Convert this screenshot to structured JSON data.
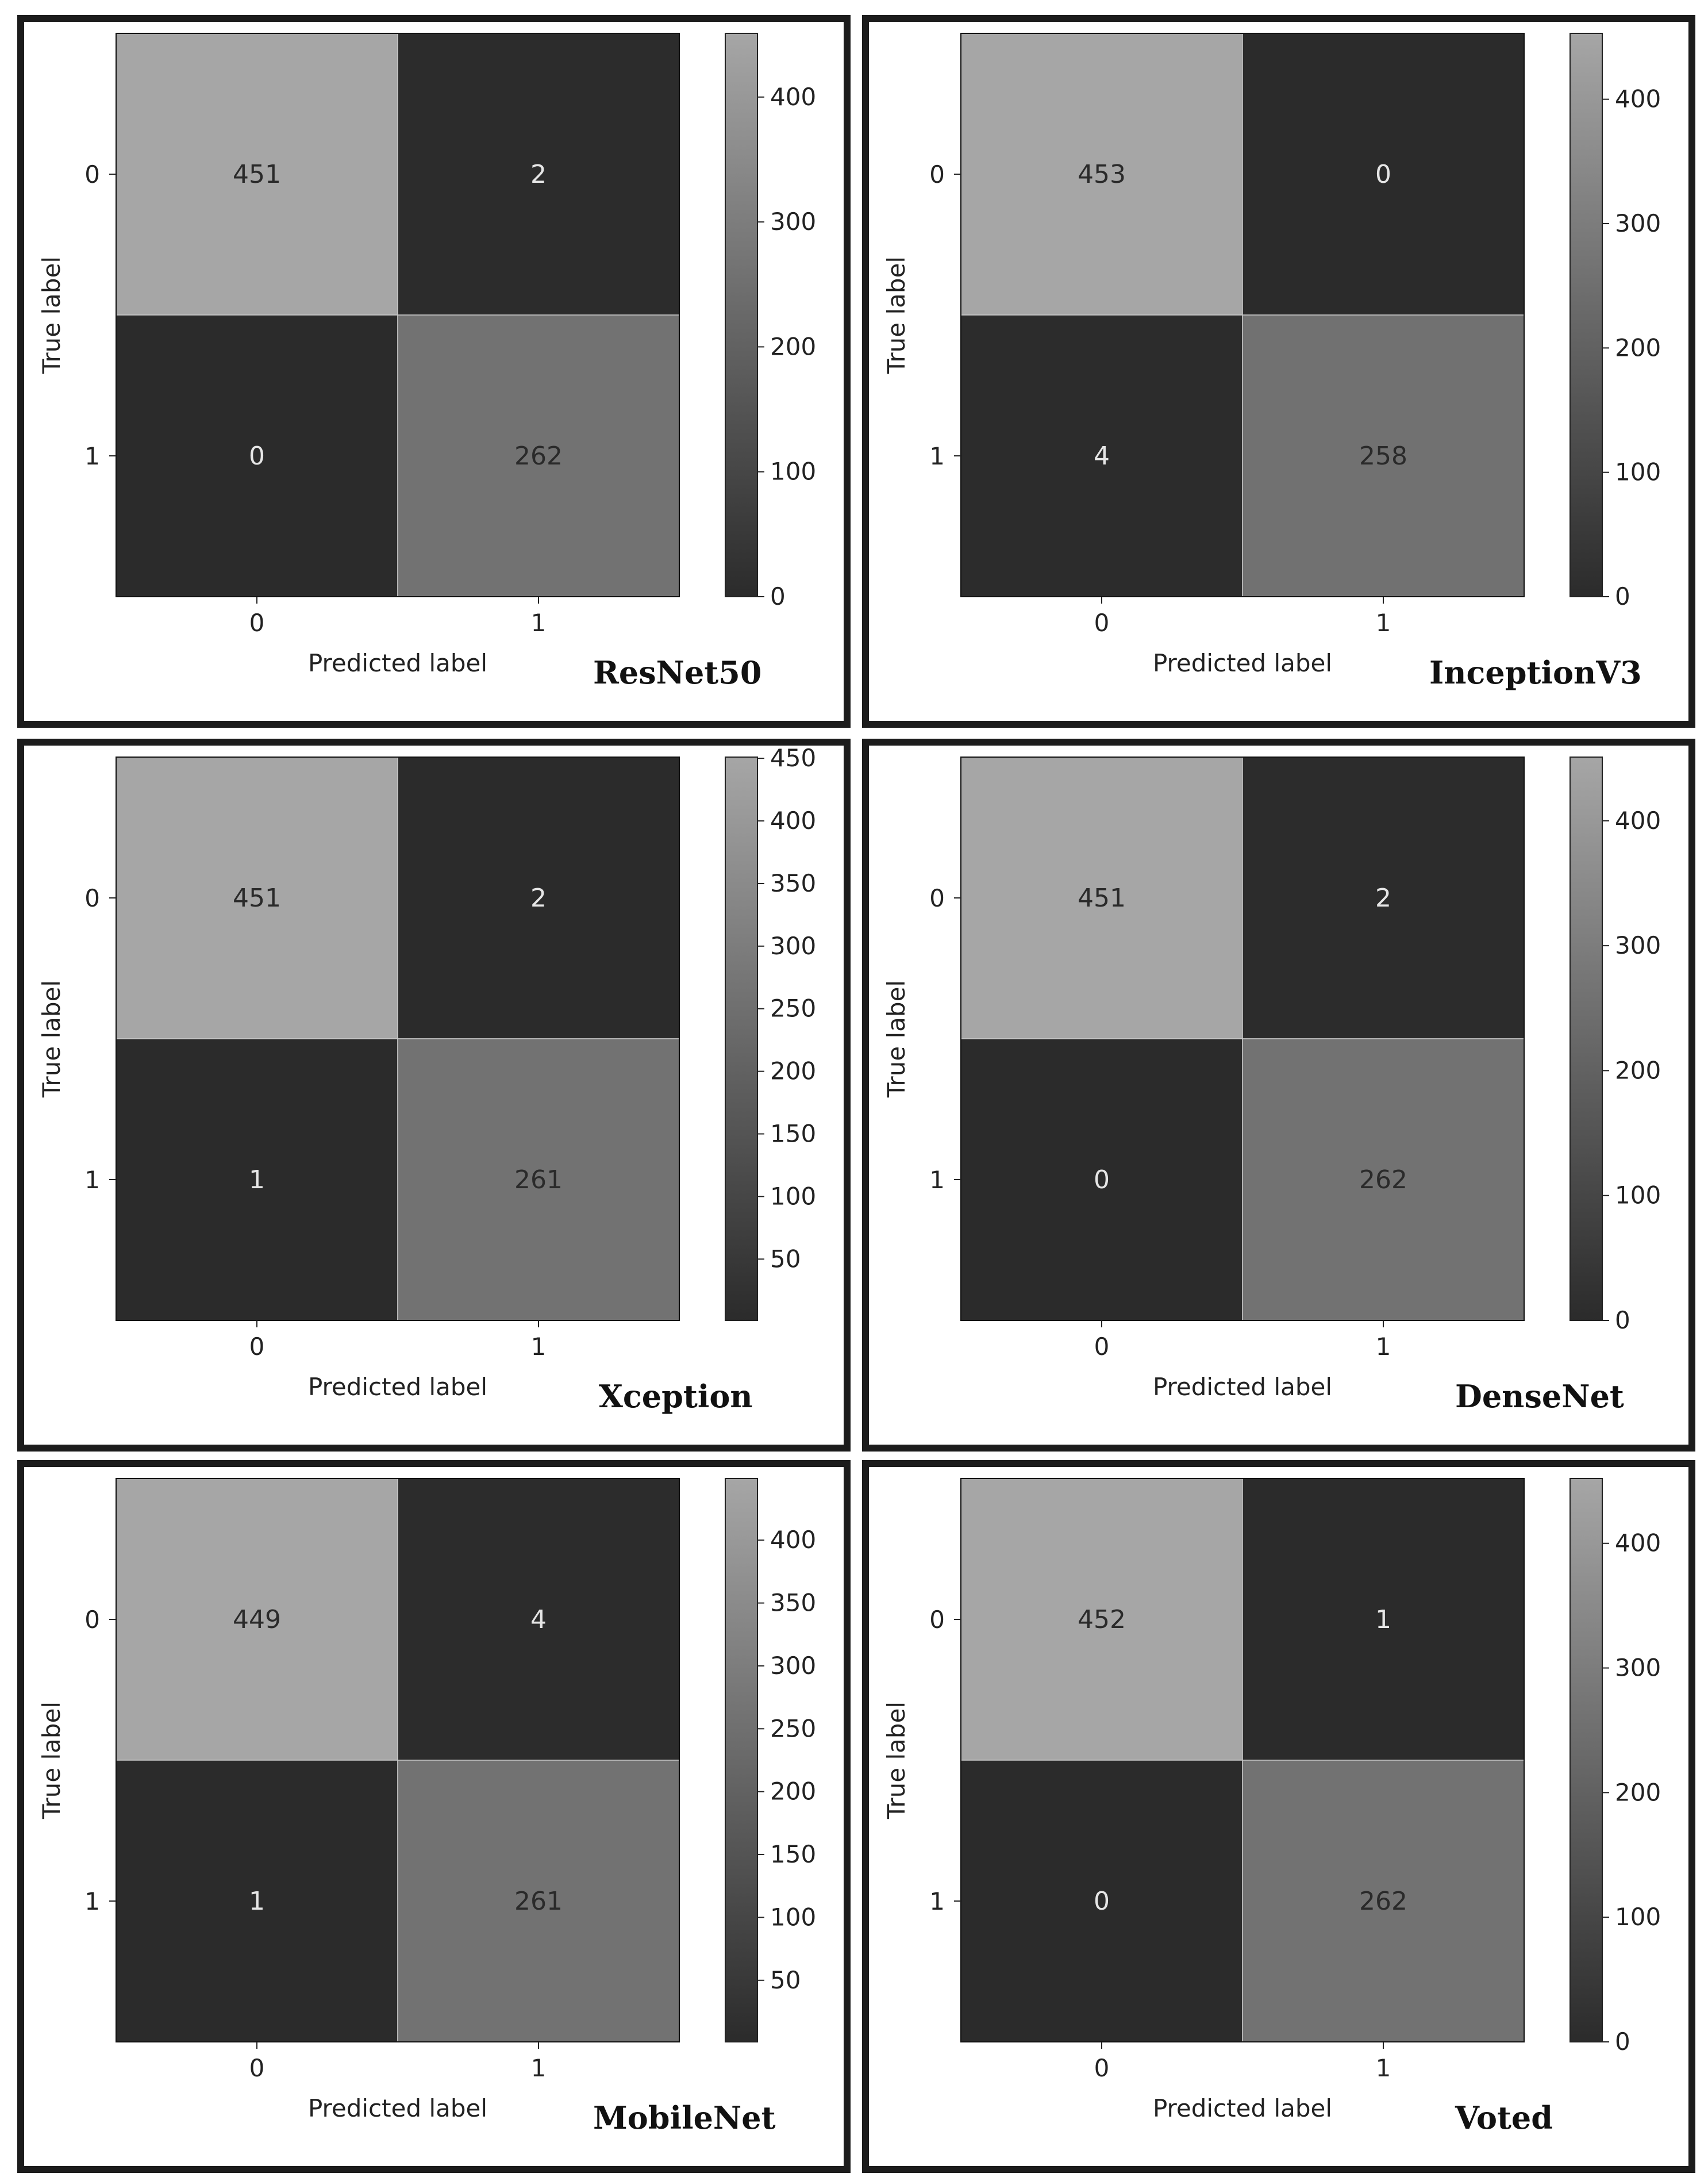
{
  "colors": {
    "cmap_low": "#2b2b2b",
    "cmap_high": "#a6a6a6",
    "text_on_light": "#2a2a2a",
    "text_on_dark": "#e6e6e6",
    "panel_border": "#1c1c1c"
  },
  "chart_data": [
    {
      "type": "heatmap",
      "model_name": "ResNet50",
      "x_categories": [
        "0",
        "1"
      ],
      "y_categories": [
        "0",
        "1"
      ],
      "matrix": [
        [
          451,
          2
        ],
        [
          0,
          262
        ]
      ],
      "xlabel": "Predicted label",
      "ylabel": "True label",
      "colorbar_ticks": [
        "0",
        "100",
        "200",
        "300",
        "400"
      ],
      "colorbar_range": [
        0,
        451
      ]
    },
    {
      "type": "heatmap",
      "model_name": "InceptionV3",
      "x_categories": [
        "0",
        "1"
      ],
      "y_categories": [
        "0",
        "1"
      ],
      "matrix": [
        [
          453,
          0
        ],
        [
          4,
          258
        ]
      ],
      "xlabel": "Predicted label",
      "ylabel": "True label",
      "colorbar_ticks": [
        "0",
        "100",
        "200",
        "300",
        "400"
      ],
      "colorbar_range": [
        0,
        453
      ]
    },
    {
      "type": "heatmap",
      "model_name": "Xception",
      "x_categories": [
        "0",
        "1"
      ],
      "y_categories": [
        "0",
        "1"
      ],
      "matrix": [
        [
          451,
          2
        ],
        [
          1,
          261
        ]
      ],
      "xlabel": "Predicted label",
      "ylabel": "True label",
      "colorbar_ticks": [
        "50",
        "100",
        "150",
        "200",
        "250",
        "300",
        "350",
        "400",
        "450"
      ],
      "colorbar_range": [
        1,
        451
      ]
    },
    {
      "type": "heatmap",
      "model_name": "DenseNet",
      "x_categories": [
        "0",
        "1"
      ],
      "y_categories": [
        "0",
        "1"
      ],
      "matrix": [
        [
          451,
          2
        ],
        [
          0,
          262
        ]
      ],
      "xlabel": "Predicted label",
      "ylabel": "True label",
      "colorbar_ticks": [
        "0",
        "100",
        "200",
        "300",
        "400"
      ],
      "colorbar_range": [
        0,
        451
      ]
    },
    {
      "type": "heatmap",
      "model_name": "MobileNet",
      "x_categories": [
        "0",
        "1"
      ],
      "y_categories": [
        "0",
        "1"
      ],
      "matrix": [
        [
          449,
          4
        ],
        [
          1,
          261
        ]
      ],
      "xlabel": "Predicted label",
      "ylabel": "True label",
      "colorbar_ticks": [
        "50",
        "100",
        "150",
        "200",
        "250",
        "300",
        "350",
        "400"
      ],
      "colorbar_range": [
        1,
        449
      ]
    },
    {
      "type": "heatmap",
      "model_name": "Voted",
      "x_categories": [
        "0",
        "1"
      ],
      "y_categories": [
        "0",
        "1"
      ],
      "matrix": [
        [
          452,
          1
        ],
        [
          0,
          262
        ]
      ],
      "xlabel": "Predicted label",
      "ylabel": "True label",
      "colorbar_ticks": [
        "0",
        "100",
        "200",
        "300",
        "400"
      ],
      "colorbar_range": [
        0,
        452
      ]
    }
  ]
}
